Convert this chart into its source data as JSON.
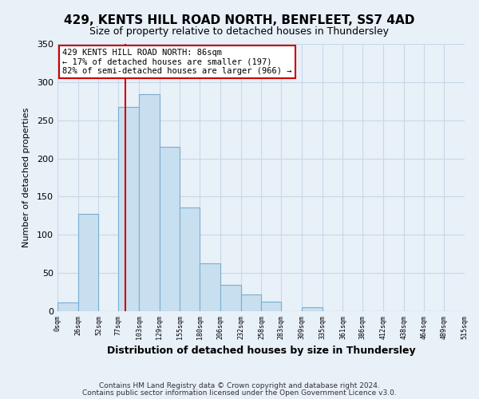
{
  "title": "429, KENTS HILL ROAD NORTH, BENFLEET, SS7 4AD",
  "subtitle": "Size of property relative to detached houses in Thundersley",
  "xlabel": "Distribution of detached houses by size in Thundersley",
  "ylabel": "Number of detached properties",
  "bar_edges": [
    0,
    26,
    52,
    77,
    103,
    129,
    155,
    180,
    206,
    232,
    258,
    283,
    309,
    335,
    361,
    386,
    412,
    438,
    464,
    489,
    515
  ],
  "bar_heights": [
    12,
    127,
    0,
    267,
    284,
    215,
    136,
    63,
    35,
    22,
    13,
    0,
    5,
    0,
    0,
    0,
    0,
    0,
    0,
    0
  ],
  "bar_color": "#c8dff0",
  "bar_edge_color": "#7aaed0",
  "tick_labels": [
    "0sqm",
    "26sqm",
    "52sqm",
    "77sqm",
    "103sqm",
    "129sqm",
    "155sqm",
    "180sqm",
    "206sqm",
    "232sqm",
    "258sqm",
    "283sqm",
    "309sqm",
    "335sqm",
    "361sqm",
    "386sqm",
    "412sqm",
    "438sqm",
    "464sqm",
    "489sqm",
    "515sqm"
  ],
  "property_line_x": 86,
  "property_line_color": "#cc0000",
  "annotation_line1": "429 KENTS HILL ROAD NORTH: 86sqm",
  "annotation_line2": "← 17% of detached houses are smaller (197)",
  "annotation_line3": "82% of semi-detached houses are larger (966) →",
  "annotation_box_color": "#ffffff",
  "annotation_box_edge": "#cc0000",
  "ylim": [
    0,
    350
  ],
  "yticks": [
    0,
    50,
    100,
    150,
    200,
    250,
    300,
    350
  ],
  "xlim": [
    0,
    515
  ],
  "grid_color": "#c8d8e8",
  "bg_color": "#e8f0f8",
  "footer1": "Contains HM Land Registry data © Crown copyright and database right 2024.",
  "footer2": "Contains public sector information licensed under the Open Government Licence v3.0."
}
